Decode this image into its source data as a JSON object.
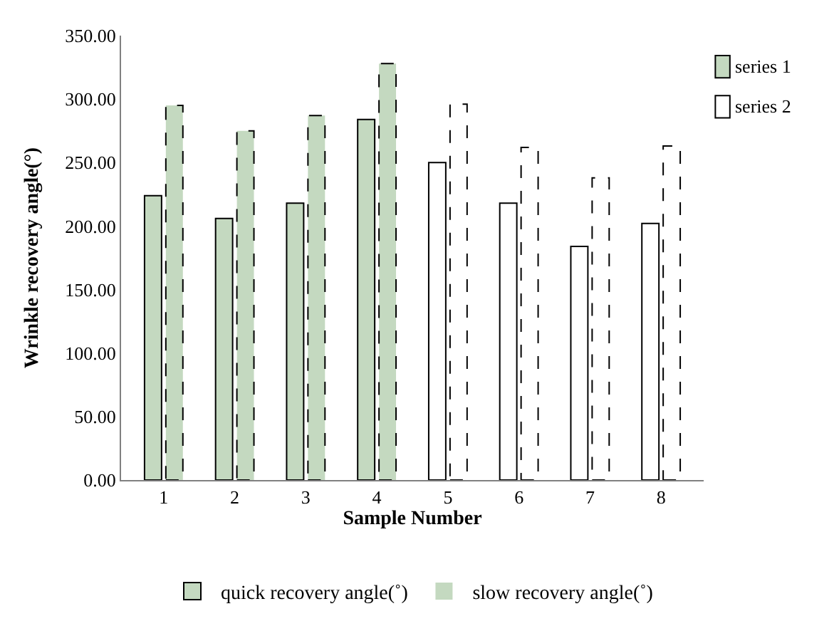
{
  "chart_data": {
    "type": "bar",
    "xlabel": "Sample Number",
    "ylabel": "Wrinkle recovery angle(°)",
    "categories": [
      "1",
      "2",
      "3",
      "4",
      "5",
      "6",
      "7",
      "8"
    ],
    "series": [
      {
        "name": "quick recovery angle(˚)",
        "line_style": "solid",
        "colors": [
          "#c4d9c0",
          "#c4d9c0",
          "#c4d9c0",
          "#c4d9c0",
          "#ffffff",
          "#ffffff",
          "#ffffff",
          "#ffffff"
        ],
        "values": [
          224,
          206,
          218,
          284,
          250,
          218,
          184,
          202
        ]
      },
      {
        "name": "slow recovery angle(˚)",
        "line_style": "dashed",
        "colors": [
          "#c4d9c0",
          "#c4d9c0",
          "#c4d9c0",
          "#c4d9c0",
          "#ffffff",
          "#ffffff",
          "#ffffff",
          "#ffffff"
        ],
        "values": [
          295,
          275,
          287,
          328,
          296,
          262,
          238,
          263
        ]
      }
    ],
    "annotations": [
      "series 1",
      "series 2"
    ],
    "ylim": [
      0,
      350
    ],
    "yticks": [
      {
        "value": 0,
        "label": "0.00"
      },
      {
        "value": 50,
        "label": "50.00"
      },
      {
        "value": 100,
        "label": "100.00"
      },
      {
        "value": 150,
        "label": "150.00"
      },
      {
        "value": 200,
        "label": "200.00"
      },
      {
        "value": 250,
        "label": "250.00"
      },
      {
        "value": 300,
        "label": "300.00"
      },
      {
        "value": 350,
        "label": "350.00"
      }
    ],
    "legend": "bottom"
  }
}
